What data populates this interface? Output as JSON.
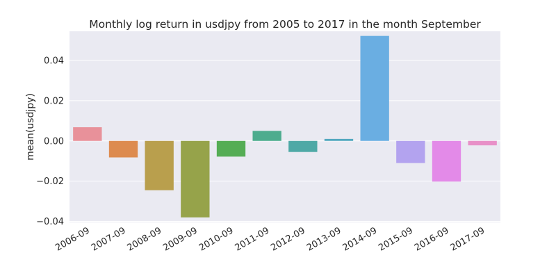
{
  "chart_data": {
    "type": "bar",
    "title": "Monthly log return in usdjpy from 2005 to 2017 in the month September",
    "xlabel": "",
    "ylabel": "mean(usdjpy)",
    "categories": [
      "2006-09",
      "2007-09",
      "2008-09",
      "2009-09",
      "2010-09",
      "2011-09",
      "2012-09",
      "2013-09",
      "2014-09",
      "2015-09",
      "2016-09",
      "2017-09"
    ],
    "values": [
      0.0068,
      -0.0082,
      -0.0245,
      -0.038,
      -0.0078,
      0.005,
      -0.0055,
      0.001,
      0.0522,
      -0.011,
      -0.0202,
      -0.0022
    ],
    "colors": [
      "#e8919a",
      "#dd8b4f",
      "#b99f4d",
      "#96a34a",
      "#55ad55",
      "#4dac8e",
      "#4ea9a6",
      "#52a7bf",
      "#6aaee2",
      "#b3a3ef",
      "#e38ae8",
      "#e890c8"
    ],
    "ylim": [
      -0.0405,
      0.0545
    ],
    "yticks": [
      -0.04,
      -0.02,
      0.0,
      0.02,
      0.04
    ],
    "ytick_labels": [
      "−0.04",
      "−0.02",
      "0.00",
      "0.02",
      "0.04"
    ],
    "grid": true,
    "legend": "none",
    "background": "#eaeaf2",
    "grid_color": "#ffffff"
  }
}
